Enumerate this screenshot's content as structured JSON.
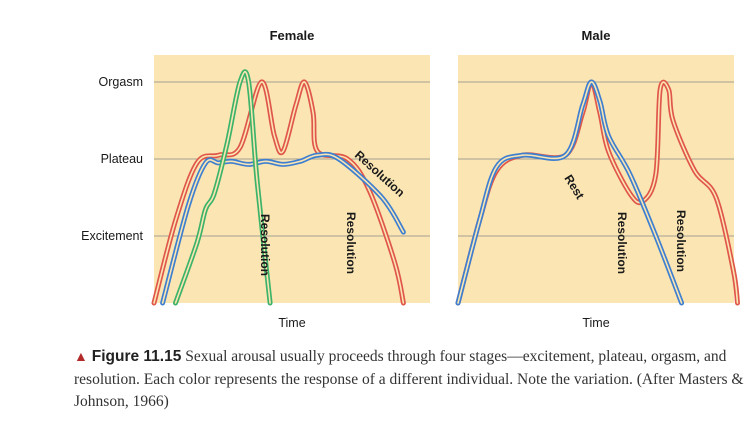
{
  "chart_data": [
    {
      "type": "line",
      "title": "Female",
      "xlabel": "Time",
      "ylabel": "",
      "y_levels": [
        "Orgasm",
        "Plateau",
        "Excitement"
      ],
      "curve_labels": [
        "Resolution",
        "Resolution",
        "Resolution"
      ],
      "series": [
        {
          "color": "red",
          "points": [
            [
              0,
              0
            ],
            [
              5,
              1.2
            ],
            [
              10,
              1.95
            ],
            [
              15,
              2.05
            ],
            [
              20,
              2.15
            ],
            [
              25,
              3
            ],
            [
              28,
              2.3
            ],
            [
              30,
              2.1
            ],
            [
              33,
              2.7
            ],
            [
              35,
              3
            ],
            [
              37,
              2.6
            ],
            [
              38,
              2.1
            ],
            [
              45,
              2
            ],
            [
              50,
              1.6
            ],
            [
              56,
              0.6
            ],
            [
              58,
              0
            ]
          ]
        },
        {
          "color": "blue",
          "points": [
            [
              2,
              0
            ],
            [
              8,
              1.4
            ],
            [
              12,
              1.95
            ],
            [
              15,
              1.95
            ],
            [
              18,
              1.97
            ],
            [
              22,
              1.93
            ],
            [
              26,
              1.97
            ],
            [
              30,
              1.93
            ],
            [
              34,
              1.97
            ],
            [
              38,
              2.05
            ],
            [
              43,
              2
            ],
            [
              53,
              1.5
            ],
            [
              58,
              1.05
            ]
          ]
        },
        {
          "color": "green",
          "points": [
            [
              5,
              0
            ],
            [
              10,
              0.9
            ],
            [
              12,
              1.35
            ],
            [
              14,
              1.55
            ],
            [
              17,
              2.2
            ],
            [
              20,
              3
            ],
            [
              22,
              3
            ],
            [
              24,
              1.7
            ],
            [
              27,
              0
            ]
          ]
        }
      ]
    },
    {
      "type": "line",
      "title": "Male",
      "xlabel": "Time",
      "ylabel": "",
      "y_levels": [
        "Orgasm",
        "Plateau",
        "Excitement"
      ],
      "curve_labels": [
        "Rest",
        "Resolution",
        "Resolution"
      ],
      "series": [
        {
          "color": "red",
          "points": [
            [
              0,
              0
            ],
            [
              5,
              1.2
            ],
            [
              9,
              1.85
            ],
            [
              15,
              2.05
            ],
            [
              25,
              2.05
            ],
            [
              29,
              2.6
            ],
            [
              31,
              3
            ],
            [
              33,
              2.6
            ],
            [
              35,
              2.1
            ],
            [
              40,
              1.55
            ],
            [
              43,
              1.45
            ],
            [
              46,
              1.8
            ],
            [
              47,
              2.9
            ],
            [
              49,
              2.9
            ],
            [
              50,
              2.5
            ],
            [
              55,
              1.85
            ],
            [
              60,
              1.5
            ],
            [
              64,
              0.5
            ],
            [
              65,
              0
            ]
          ]
        },
        {
          "color": "blue",
          "points": [
            [
              0,
              0
            ],
            [
              5,
              1.2
            ],
            [
              9,
              1.9
            ],
            [
              15,
              2.05
            ],
            [
              25,
              2.05
            ],
            [
              29,
              2.7
            ],
            [
              31,
              3
            ],
            [
              33,
              2.75
            ],
            [
              35,
              2.3
            ],
            [
              40,
              1.8
            ],
            [
              46,
              1
            ],
            [
              52,
              0
            ]
          ]
        }
      ]
    }
  ],
  "caption": {
    "figure_label": "Figure 11.15",
    "text": "Sexual arousal usually proceeds through four stages—excitement, plateau, orgasm, and resolution. Each color represents the response of a different individual. Note the variation. (After Masters & Johnson, 1966)"
  }
}
